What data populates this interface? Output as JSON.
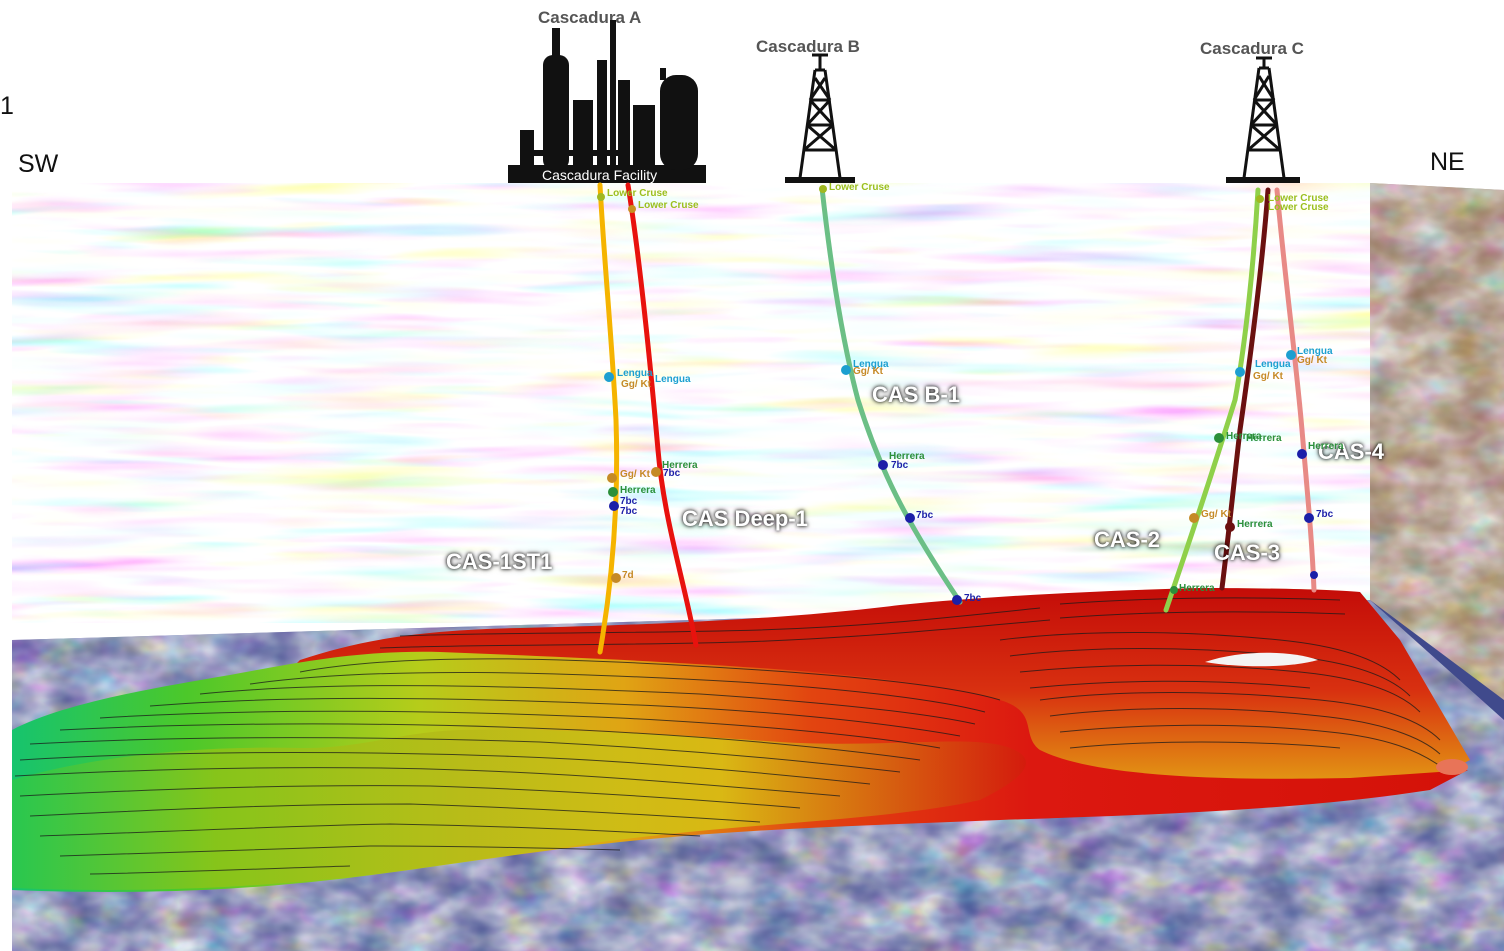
{
  "page": {
    "corner_fragment": "1",
    "direction_left": "SW",
    "direction_right": "NE"
  },
  "facilities": {
    "a": {
      "title": "Cascadura A",
      "plate": "Cascadura Facility",
      "icon": "processing-facility-icon"
    },
    "b": {
      "title": "Cascadura B",
      "icon": "drilling-rig-icon"
    },
    "c": {
      "title": "Cascadura C",
      "icon": "drilling-rig-icon"
    }
  },
  "wells": [
    {
      "name": "CAS-1ST1",
      "color": "#f5b400"
    },
    {
      "name": "CAS Deep-1",
      "color": "#e8120e"
    },
    {
      "name": "CAS B-1",
      "color": "#6bbf86"
    },
    {
      "name": "CAS-2",
      "color": "#8fd04a"
    },
    {
      "name": "CAS-3",
      "color": "#6b1010"
    },
    {
      "name": "CAS-4",
      "color": "#e88a86"
    }
  ],
  "markers": {
    "lower_cruse": "Lower Cruse",
    "lengua": "Lengua",
    "ggkt": "Gg/ Kt",
    "herrera": "Herrera",
    "sevenbc": "7bc",
    "sevend": "7d"
  },
  "colors": {
    "seismic_blue": "#1b2a8c",
    "seismic_brown": "#8a5424",
    "surface_red": "#e01a10",
    "surface_yellow": "#d8c81a",
    "surface_green": "#2ec44a"
  }
}
